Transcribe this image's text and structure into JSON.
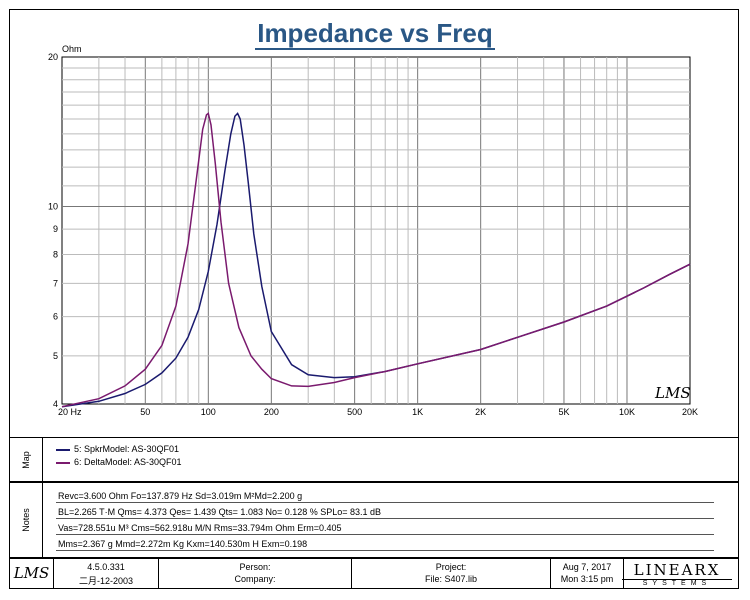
{
  "chart_data": {
    "type": "line",
    "title": "Impedance vs Freq",
    "ylabel": "Ohm",
    "x_scale": "log",
    "y_scale": "log",
    "xlim": [
      20,
      20000
    ],
    "ylim": [
      4,
      20
    ],
    "grid": true,
    "x_ticks": [
      "20 Hz",
      "50",
      "100",
      "200",
      "500",
      "1K",
      "2K",
      "5K",
      "10K",
      "20K"
    ],
    "x_tick_values": [
      20,
      50,
      100,
      200,
      500,
      1000,
      2000,
      5000,
      10000,
      20000
    ],
    "y_ticks": [
      "4",
      "5",
      "6",
      "7",
      "8",
      "9",
      "10",
      "20"
    ],
    "y_tick_values": [
      4,
      5,
      6,
      7,
      8,
      9,
      10,
      20
    ],
    "series": [
      {
        "name": "5: SpkrModel: AS-30QF01",
        "color": "#1a1a6e",
        "x": [
          20,
          30,
          40,
          50,
          60,
          70,
          80,
          90,
          100,
          110,
          120,
          128,
          134,
          138,
          142,
          148,
          155,
          165,
          180,
          200,
          250,
          300,
          400,
          500,
          700,
          1000,
          2000,
          3000,
          5000,
          8000,
          12000,
          16000,
          20000
        ],
        "y": [
          3.95,
          4.05,
          4.2,
          4.38,
          4.62,
          4.95,
          5.45,
          6.2,
          7.4,
          9.2,
          11.8,
          14.0,
          15.2,
          15.4,
          15.0,
          13.3,
          11.2,
          8.8,
          6.9,
          5.6,
          4.8,
          4.58,
          4.52,
          4.54,
          4.65,
          4.82,
          5.15,
          5.45,
          5.85,
          6.3,
          6.85,
          7.3,
          7.65
        ]
      },
      {
        "name": "6: DeltaModel: AS-30QF01",
        "color": "#7a1a6e",
        "x": [
          20,
          30,
          40,
          50,
          60,
          70,
          80,
          88,
          94,
          98,
          100,
          103,
          108,
          115,
          125,
          140,
          160,
          180,
          200,
          250,
          300,
          400,
          500,
          700,
          1000,
          2000,
          3000,
          5000,
          8000,
          12000,
          16000,
          20000
        ],
        "y": [
          3.95,
          4.1,
          4.35,
          4.7,
          5.25,
          6.3,
          8.4,
          11.5,
          14.3,
          15.3,
          15.4,
          14.6,
          12.2,
          9.3,
          7.0,
          5.7,
          5.0,
          4.7,
          4.5,
          4.35,
          4.34,
          4.42,
          4.52,
          4.65,
          4.82,
          5.15,
          5.45,
          5.85,
          6.3,
          6.85,
          7.3,
          7.65
        ]
      }
    ]
  },
  "watermark": "LMS",
  "map": {
    "label": "Map",
    "entries": [
      "5: SpkrModel: AS-30QF01",
      "6: DeltaModel: AS-30QF01"
    ]
  },
  "notes": {
    "label": "Notes",
    "lines": [
      "Revc=3.600 Ohm  Fo=137.879 Hz  Sd=3.019m M²Md=2.200 g",
      "BL=2.265 T·M  Qms= 4.373  Qes= 1.439  Qts= 1.083  No= 0.128 %  SPLo= 83.1 dB",
      "Vas=728.551u M³ Cms=562.918u M/N  Rms=33.794m Ohm  Erm=0.405",
      "Mms=2.367 g  Mmd=2.272m Kg  Kxm=140.530m H  Exm=0.198"
    ]
  },
  "footer": {
    "logo": "LMS",
    "version": "4.5.0.331",
    "build_date": "二月-12-2003",
    "person_label": "Person:",
    "company_label": "Company:",
    "project_label": "Project:",
    "file_label": "File: S407.lib",
    "date": "Aug  7, 2017",
    "time": "Mon  3:15 pm",
    "brand_top": "LINEARX",
    "brand_bottom": "SYSTEMS"
  }
}
